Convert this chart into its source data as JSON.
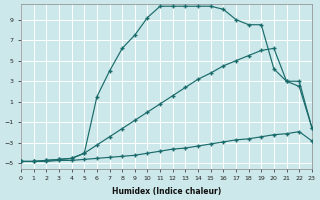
{
  "xlabel": "Humidex (Indice chaleur)",
  "bg_color": "#cde8ea",
  "grid_color": "#b8d8da",
  "line_color": "#1a6b6b",
  "xlim": [
    0,
    23
  ],
  "ylim": [
    -5.5,
    10.5
  ],
  "yticks": [
    -5,
    -3,
    -1,
    1,
    3,
    5,
    7,
    9
  ],
  "xticks": [
    0,
    1,
    2,
    3,
    4,
    5,
    6,
    7,
    8,
    9,
    10,
    11,
    12,
    13,
    14,
    15,
    16,
    17,
    18,
    19,
    20,
    21,
    22,
    23
  ],
  "line1_x": [
    0,
    1,
    2,
    3,
    4,
    5,
    6,
    7,
    8,
    9,
    10,
    11,
    12,
    13,
    14,
    15,
    16,
    17,
    18,
    19,
    20,
    21,
    22,
    23
  ],
  "line1_y": [
    -4.8,
    -4.8,
    -4.8,
    -4.7,
    -4.7,
    -4.6,
    -4.5,
    -4.4,
    -4.3,
    -4.2,
    -4.0,
    -3.8,
    -3.6,
    -3.5,
    -3.3,
    -3.1,
    -2.9,
    -2.7,
    -2.6,
    -2.4,
    -2.2,
    -2.1,
    -1.9,
    -2.8
  ],
  "line2_x": [
    0,
    1,
    2,
    3,
    4,
    5,
    6,
    7,
    8,
    9,
    10,
    11,
    12,
    13,
    14,
    15,
    16,
    17,
    18,
    19,
    20,
    21,
    22,
    23
  ],
  "line2_y": [
    -4.8,
    -4.8,
    -4.7,
    -4.6,
    -4.5,
    -4.0,
    -3.2,
    -2.4,
    -1.6,
    -0.8,
    0.0,
    0.8,
    1.6,
    2.4,
    3.2,
    3.8,
    4.5,
    5.0,
    5.5,
    6.0,
    6.2,
    3.0,
    2.5,
    -1.5
  ],
  "line3_x": [
    0,
    1,
    2,
    3,
    4,
    5,
    6,
    7,
    8,
    9,
    10,
    11,
    12,
    13,
    14,
    15,
    16,
    17,
    18,
    19,
    20,
    21,
    22,
    23
  ],
  "line3_y": [
    -4.8,
    -4.8,
    -4.7,
    -4.6,
    -4.5,
    -4.0,
    1.5,
    4.0,
    6.2,
    7.5,
    9.2,
    10.3,
    10.3,
    10.3,
    10.3,
    10.3,
    10.0,
    9.0,
    8.5,
    8.5,
    4.2,
    3.0,
    3.0,
    -1.5
  ]
}
